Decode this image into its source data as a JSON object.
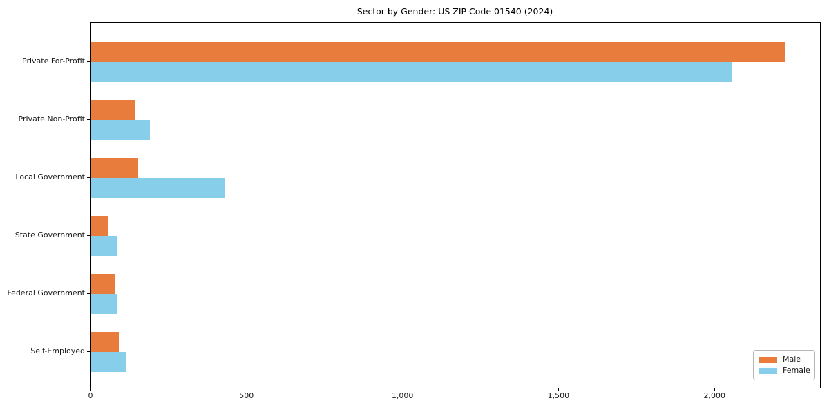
{
  "chart_data": {
    "type": "bar",
    "orientation": "horizontal",
    "title": "Sector by Gender: US ZIP Code 01540 (2024)",
    "categories": [
      "Private For-Profit",
      "Private Non-Profit",
      "Local Government",
      "State Government",
      "Federal Government",
      "Self-Employed"
    ],
    "series": [
      {
        "name": "Male",
        "color": "#e87c3c",
        "values": [
          2225,
          140,
          151,
          53,
          75,
          88
        ]
      },
      {
        "name": "Female",
        "color": "#87ceeb",
        "values": [
          2055,
          189,
          430,
          84,
          84,
          111
        ]
      }
    ],
    "xlim": [
      0,
      2336
    ],
    "x_ticks": [
      {
        "value": 0,
        "label": "0"
      },
      {
        "value": 500,
        "label": "500"
      },
      {
        "value": 1000,
        "label": "1,000"
      },
      {
        "value": 1500,
        "label": "1,500"
      },
      {
        "value": 2000,
        "label": "2,000"
      }
    ],
    "ylabel": "",
    "xlabel": "",
    "grid": false,
    "legend_position": "lower right"
  }
}
